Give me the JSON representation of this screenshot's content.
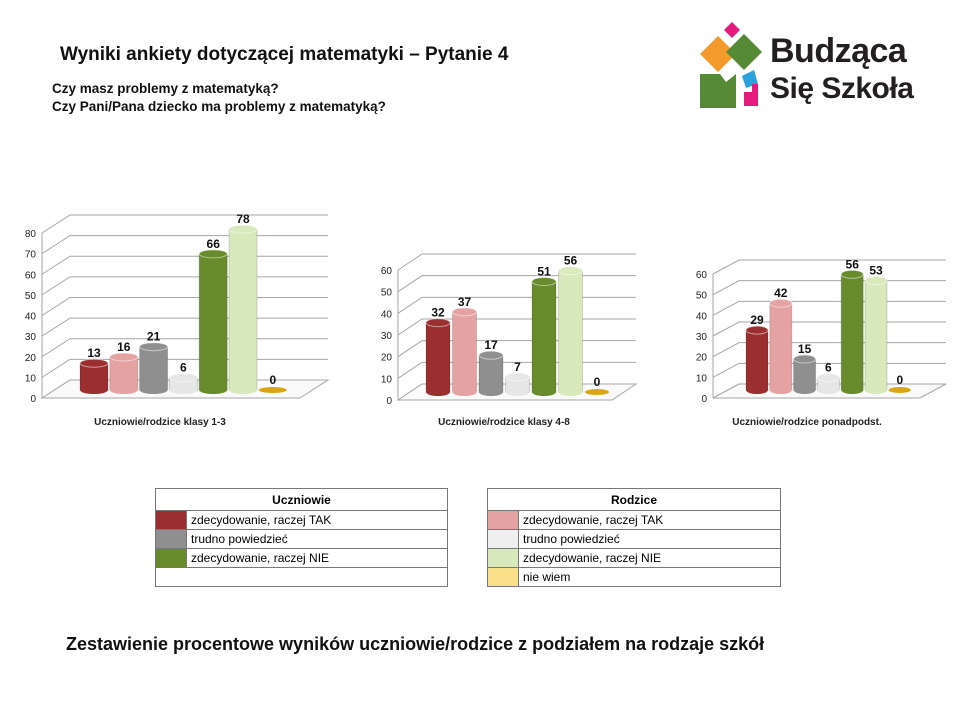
{
  "title": "Wyniki ankiety dotyczącej matematyki – Pytanie 4",
  "questions": [
    "Czy masz problemy z matematyką?",
    "Czy Pani/Pana dziecko ma problemy z matematyką?"
  ],
  "logo": {
    "line1": "Budząca",
    "line2": "Się Szkoła"
  },
  "colors": [
    "#9b2f2f",
    "#e4a2a2",
    "#8f8f8f",
    "#e6e6e6",
    "#688c2c",
    "#d8e9bc",
    "#d9a514"
  ],
  "chart_data": [
    {
      "type": "bar",
      "title": "Uczniowie/rodzice klasy 1-3",
      "ylim": [
        0,
        80
      ],
      "yticks": [
        0,
        10,
        20,
        30,
        40,
        50,
        60,
        70,
        80
      ],
      "values": [
        13,
        16,
        21,
        6,
        66,
        78,
        0
      ]
    },
    {
      "type": "bar",
      "title": "Uczniowie/rodzice klasy 4-8",
      "ylim": [
        0,
        60
      ],
      "yticks": [
        0,
        10,
        20,
        30,
        40,
        50,
        60
      ],
      "values": [
        32,
        37,
        17,
        7,
        51,
        56,
        0
      ]
    },
    {
      "type": "bar",
      "title": "Uczniowie/rodzice ponadpodst.",
      "ylim": [
        0,
        60
      ],
      "yticks": [
        0,
        10,
        20,
        30,
        40,
        50,
        60
      ],
      "values": [
        29,
        42,
        15,
        6,
        56,
        53,
        0
      ]
    }
  ],
  "legend": {
    "students": {
      "header": "Uczniowie",
      "items": [
        {
          "label": "zdecydowanie, raczej TAK",
          "color": "#9b2f2f"
        },
        {
          "label": "trudno powiedzieć",
          "color": "#8f8f8f"
        },
        {
          "label": "zdecydowanie, raczej NIE",
          "color": "#688c2c"
        }
      ]
    },
    "parents": {
      "header": "Rodzice",
      "items": [
        {
          "label": "zdecydowanie, raczej TAK",
          "color": "#e4a2a2"
        },
        {
          "label": "trudno powiedzieć",
          "color": "#efefef"
        },
        {
          "label": "zdecydowanie, raczej NIE",
          "color": "#d8e9bc"
        },
        {
          "label": "nie wiem",
          "color": "#fbe08a"
        }
      ]
    }
  },
  "footer": "Zestawienie procentowe wyników uczniowie/rodzice z podziałem na rodzaje szkół"
}
